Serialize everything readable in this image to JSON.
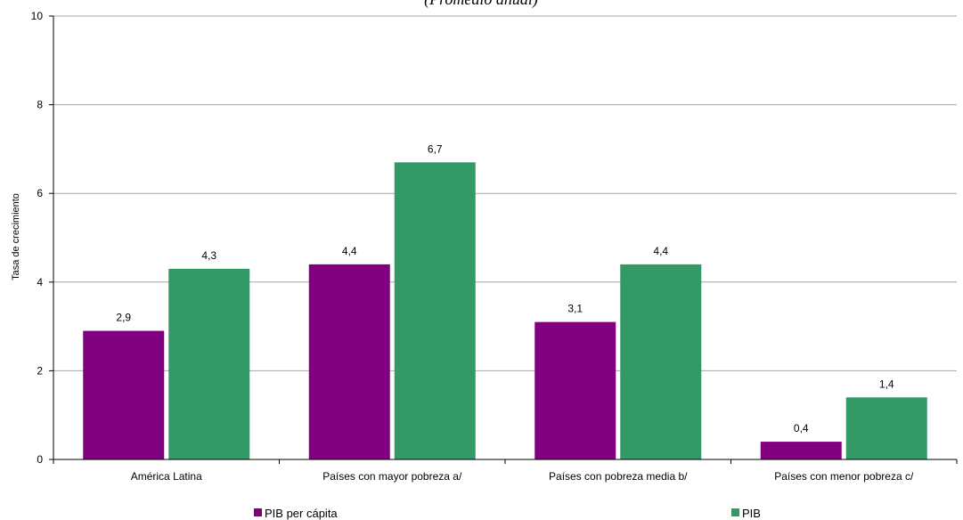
{
  "chart_data": {
    "type": "bar",
    "subtitle": "(Promedio anual)",
    "ylabel": "Tasa de crecimiento",
    "xlabel": "",
    "ylim": [
      0,
      10
    ],
    "yticks": [
      0,
      2,
      4,
      6,
      8,
      10
    ],
    "grid": true,
    "legend_position": "bottom",
    "categories": [
      "América Latina",
      "Países con mayor pobreza a/",
      "Países con pobreza media b/",
      "Países con menor pobreza c/"
    ],
    "series": [
      {
        "name": "PIB per cápita",
        "color": "#800080",
        "values": [
          2.9,
          4.4,
          3.1,
          0.4
        ],
        "labels": [
          "2,9",
          "4,4",
          "3,1",
          "0,4"
        ]
      },
      {
        "name": "PIB",
        "color": "#339966",
        "values": [
          4.3,
          6.7,
          4.4,
          1.4
        ],
        "labels": [
          "4,3",
          "6,7",
          "4,4",
          "1,4"
        ]
      }
    ]
  }
}
